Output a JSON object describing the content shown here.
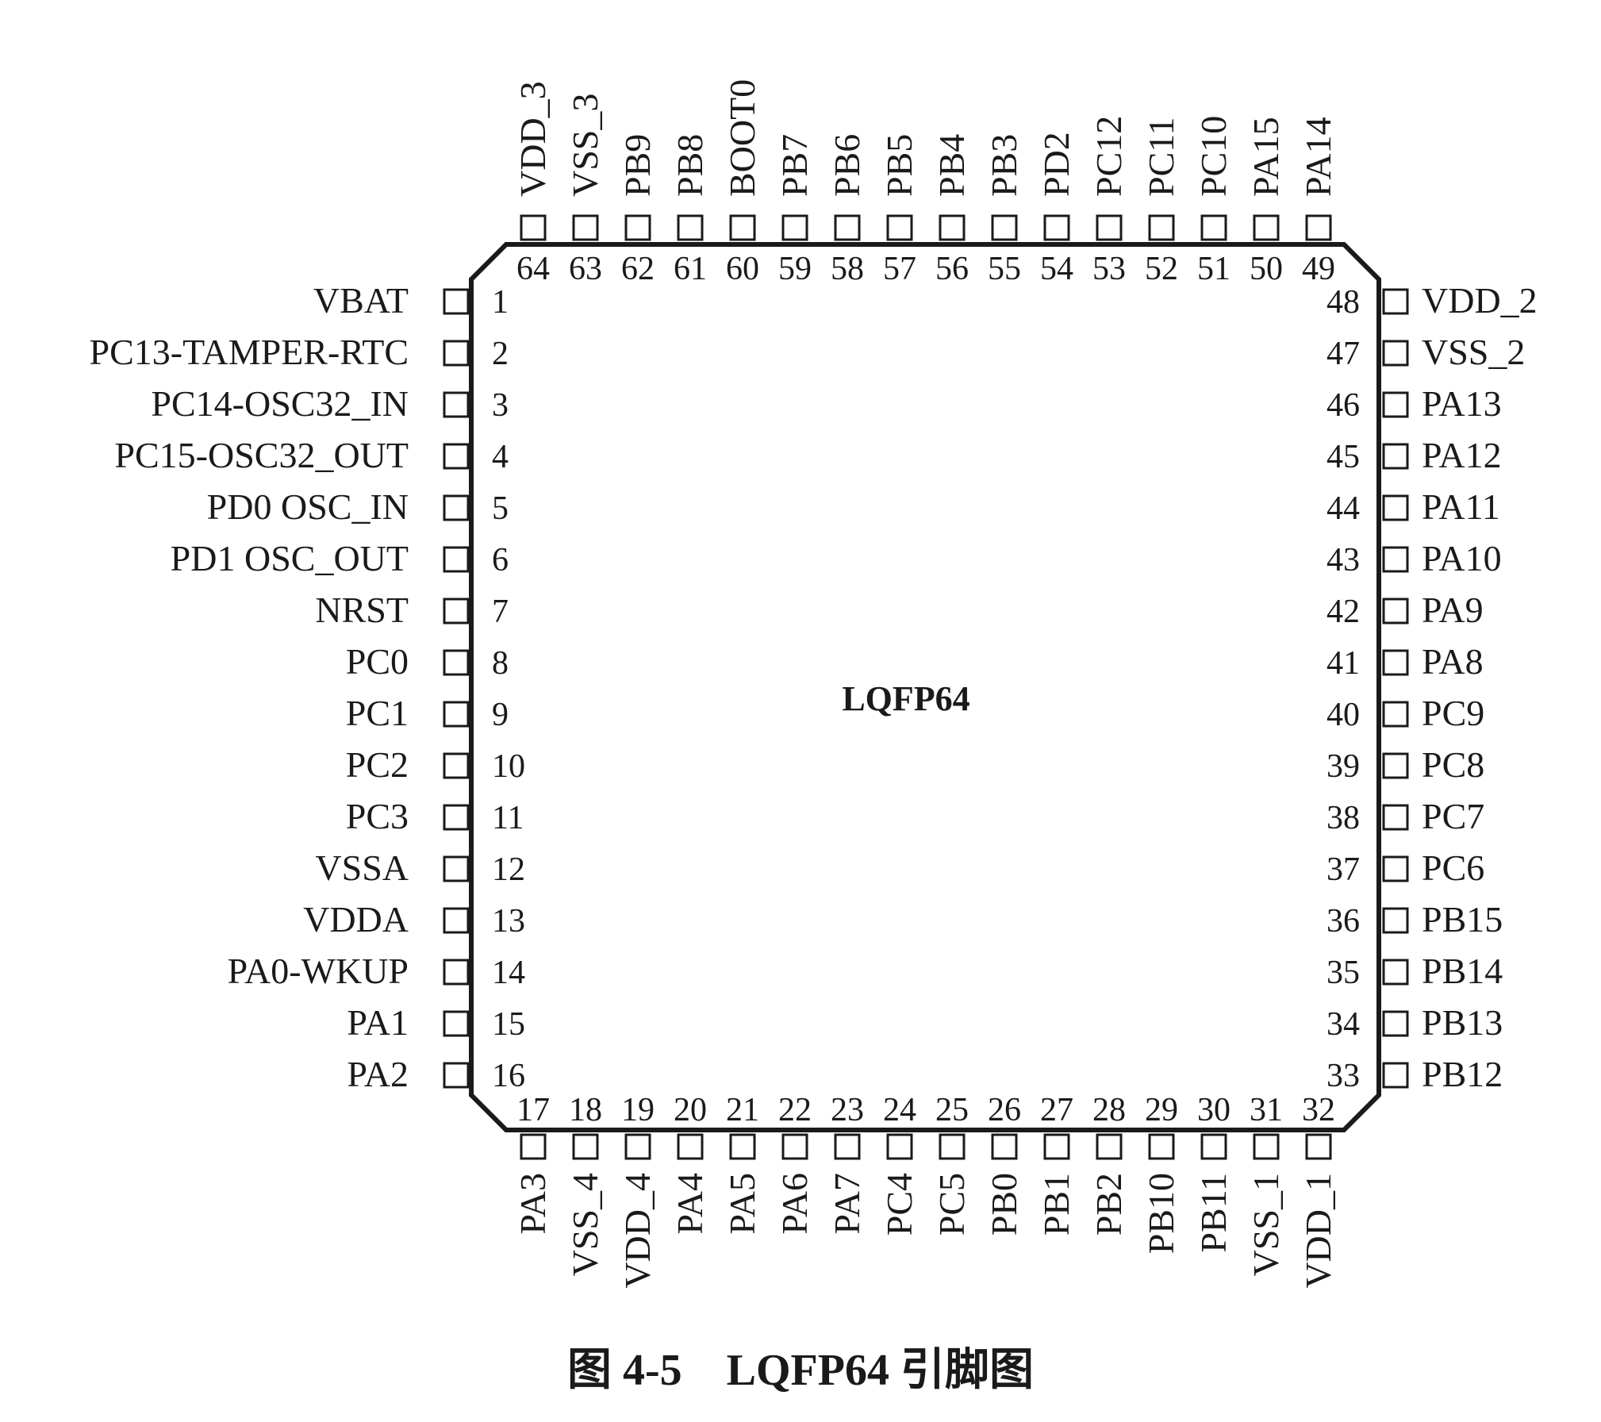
{
  "chip_name": "LQFP64",
  "caption": "图 4-5　LQFP64 引脚图",
  "pins": {
    "left": [
      {
        "n": "1",
        "label": "VBAT"
      },
      {
        "n": "2",
        "label": "PC13-TAMPER-RTC"
      },
      {
        "n": "3",
        "label": "PC14-OSC32_IN"
      },
      {
        "n": "4",
        "label": "PC15-OSC32_OUT"
      },
      {
        "n": "5",
        "label": "PD0 OSC_IN"
      },
      {
        "n": "6",
        "label": "PD1 OSC_OUT"
      },
      {
        "n": "7",
        "label": "NRST"
      },
      {
        "n": "8",
        "label": "PC0"
      },
      {
        "n": "9",
        "label": "PC1"
      },
      {
        "n": "10",
        "label": "PC2"
      },
      {
        "n": "11",
        "label": "PC3"
      },
      {
        "n": "12",
        "label": "VSSA"
      },
      {
        "n": "13",
        "label": "VDDA"
      },
      {
        "n": "14",
        "label": "PA0-WKUP"
      },
      {
        "n": "15",
        "label": "PA1"
      },
      {
        "n": "16",
        "label": "PA2"
      }
    ],
    "bottom": [
      {
        "n": "17",
        "label": "PA3"
      },
      {
        "n": "18",
        "label": "VSS_4"
      },
      {
        "n": "19",
        "label": "VDD_4"
      },
      {
        "n": "20",
        "label": "PA4"
      },
      {
        "n": "21",
        "label": "PA5"
      },
      {
        "n": "22",
        "label": "PA6"
      },
      {
        "n": "23",
        "label": "PA7"
      },
      {
        "n": "24",
        "label": "PC4"
      },
      {
        "n": "25",
        "label": "PC5"
      },
      {
        "n": "26",
        "label": "PB0"
      },
      {
        "n": "27",
        "label": "PB1"
      },
      {
        "n": "28",
        "label": "PB2"
      },
      {
        "n": "29",
        "label": "PB10"
      },
      {
        "n": "30",
        "label": "PB11"
      },
      {
        "n": "31",
        "label": "VSS_1"
      },
      {
        "n": "32",
        "label": "VDD_1"
      }
    ],
    "right": [
      {
        "n": "33",
        "label": "PB12"
      },
      {
        "n": "34",
        "label": "PB13"
      },
      {
        "n": "35",
        "label": "PB14"
      },
      {
        "n": "36",
        "label": "PB15"
      },
      {
        "n": "37",
        "label": "PC6"
      },
      {
        "n": "38",
        "label": "PC7"
      },
      {
        "n": "39",
        "label": "PC8"
      },
      {
        "n": "40",
        "label": "PC9"
      },
      {
        "n": "41",
        "label": "PA8"
      },
      {
        "n": "42",
        "label": "PA9"
      },
      {
        "n": "43",
        "label": "PA10"
      },
      {
        "n": "44",
        "label": "PA11"
      },
      {
        "n": "45",
        "label": "PA12"
      },
      {
        "n": "46",
        "label": "PA13"
      },
      {
        "n": "47",
        "label": "VSS_2"
      },
      {
        "n": "48",
        "label": "VDD_2"
      }
    ],
    "top": [
      {
        "n": "49",
        "label": "PA14"
      },
      {
        "n": "50",
        "label": "PA15"
      },
      {
        "n": "51",
        "label": "PC10"
      },
      {
        "n": "52",
        "label": "PC11"
      },
      {
        "n": "53",
        "label": "PC12"
      },
      {
        "n": "54",
        "label": "PD2"
      },
      {
        "n": "55",
        "label": "PB3"
      },
      {
        "n": "56",
        "label": "PB4"
      },
      {
        "n": "57",
        "label": "PB5"
      },
      {
        "n": "58",
        "label": "PB6"
      },
      {
        "n": "59",
        "label": "PB7"
      },
      {
        "n": "60",
        "label": "BOOT0"
      },
      {
        "n": "61",
        "label": "PB8"
      },
      {
        "n": "62",
        "label": "PB9"
      },
      {
        "n": "63",
        "label": "VSS_3"
      },
      {
        "n": "64",
        "label": "VDD_3"
      }
    ]
  }
}
